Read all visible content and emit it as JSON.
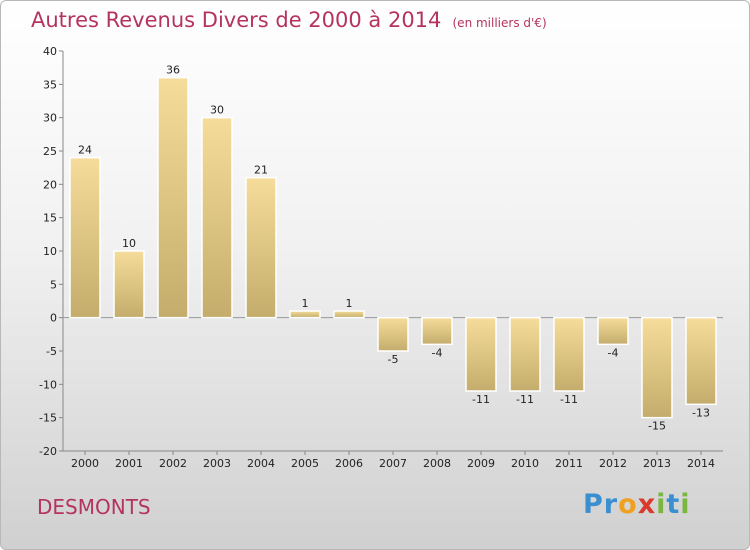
{
  "header": {
    "title": "Autres Revenus Divers de 2000 à 2014",
    "unit": "(en milliers d'€)"
  },
  "footer": {
    "town": "DESMONTS",
    "logo_letters": [
      "P",
      "r",
      "o",
      "x",
      "i",
      "t",
      "i"
    ],
    "logo_colors": [
      "#3a8fd1",
      "#3a8fd1",
      "#f0a020",
      "#d93a2b",
      "#7ab640",
      "#3a8fd1",
      "#7ab640"
    ]
  },
  "chart_data": {
    "type": "bar",
    "title": "Autres Revenus Divers de 2000 à 2014",
    "subtitle": "(en milliers d'€)",
    "categories": [
      "2000",
      "2001",
      "2002",
      "2003",
      "2004",
      "2005",
      "2006",
      "2007",
      "2008",
      "2009",
      "2010",
      "2011",
      "2012",
      "2013",
      "2014"
    ],
    "values": [
      24,
      10,
      36,
      30,
      21,
      1,
      1,
      -5,
      -4,
      -11,
      -11,
      -11,
      -4,
      -15,
      -13
    ],
    "value_labels": [
      "24",
      "10",
      "36",
      "30",
      "21",
      "1",
      "1",
      "-5",
      "-4",
      "-11",
      "-11",
      "-11",
      "-4",
      "-15",
      "-13"
    ],
    "ylim": [
      -20,
      40
    ],
    "yticks": [
      40,
      35,
      30,
      25,
      20,
      15,
      10,
      5,
      0,
      -5,
      -10,
      -15,
      -20
    ],
    "grid": false,
    "bar_color_light": "#f5dc9a",
    "bar_color_dark": "#c4ad6c"
  }
}
